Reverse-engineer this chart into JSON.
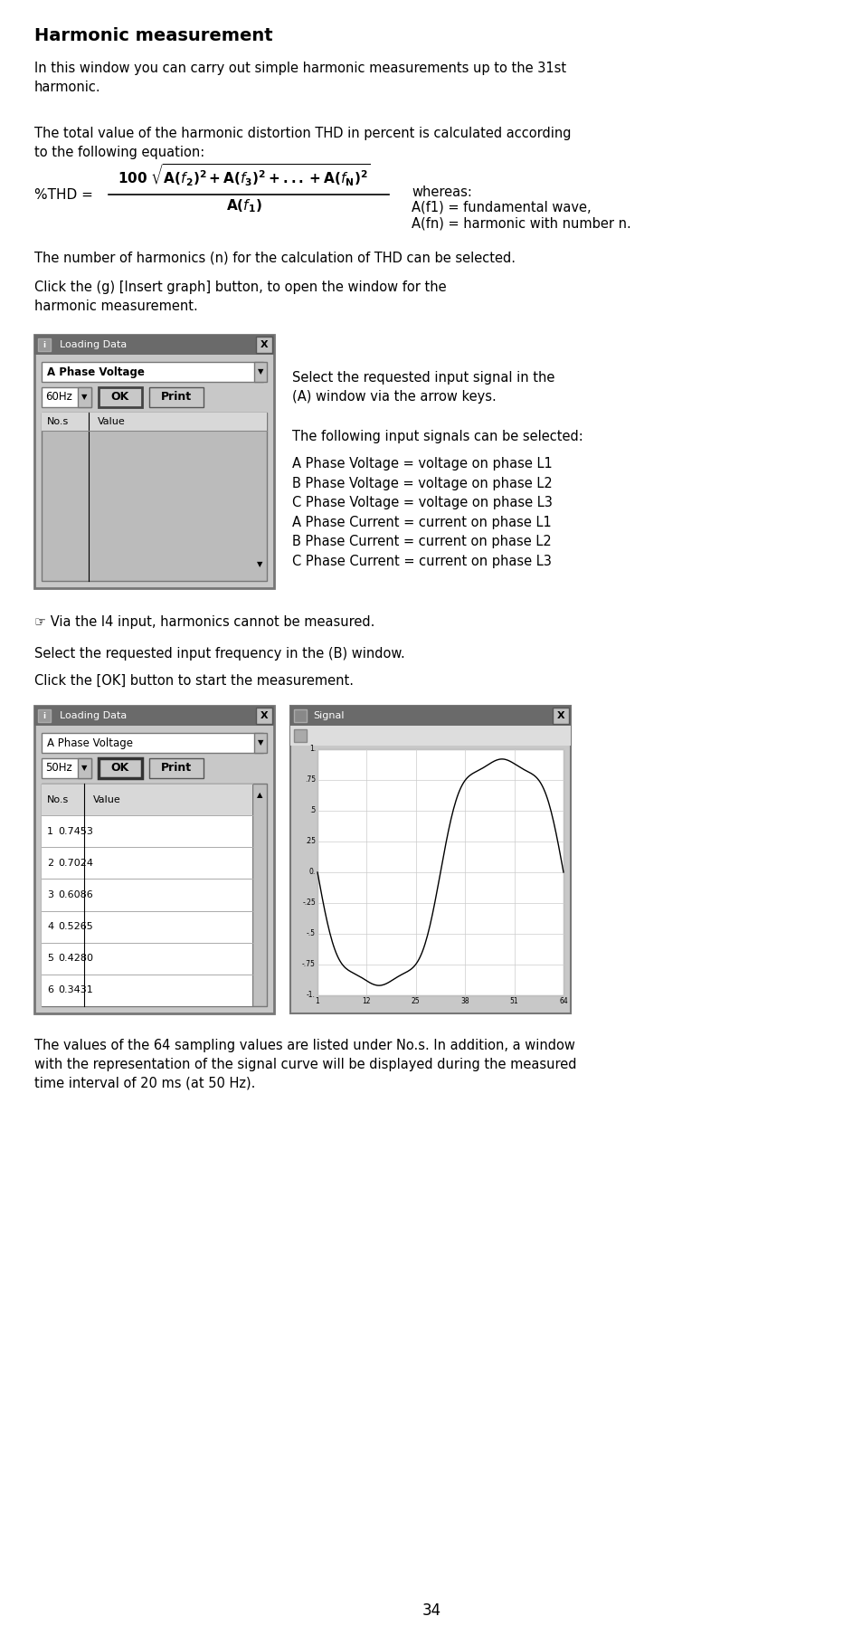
{
  "title": "Harmonic measurement",
  "bg_color": "#ffffff",
  "text_color": "#000000",
  "page_number": "34",
  "para1": "In this window you can carry out simple harmonic measurements up to the 31st\nharmonic.",
  "para2": "The total value of the harmonic distortion THD in percent is calculated according\nto the following equation:",
  "para3": "The number of harmonics (n) for the calculation of THD can be selected.",
  "para4": "Click the (g) [Insert graph] button, to open the window for the\nharmonic measurement.",
  "para5_right1": "Select the requested input signal in the\n(A) window via the arrow keys.",
  "para5_right2": "The following input signals can be selected:",
  "para5_right3": "A Phase Voltage = voltage on phase L1\nB Phase Voltage = voltage on phase L2\nC Phase Voltage = voltage on phase L3\nA Phase Current = current on phase L1\nB Phase Current = current on phase L2\nC Phase Current = current on phase L3",
  "para6": "☞ Via the I4 input, harmonics cannot be measured.",
  "para7": "Select the requested input frequency in the (B) window.",
  "para8": "Click the [OK] button to start the measurement.",
  "para9": "The values of the 64 sampling values are listed under No.s. In addition, a window\nwith the representation of the signal curve will be displayed during the measured\ntime interval of 20 ms (at 50 Hz).",
  "whereas_line1": "whereas:",
  "whereas_line2": "A(f1) = fundamental wave,",
  "whereas_line3": "A(fn) = harmonic with number n.",
  "table_rows": [
    [
      "1",
      "0.7453"
    ],
    [
      "2",
      "0.7024"
    ],
    [
      "3",
      "0.6086"
    ],
    [
      "4",
      "0.5265"
    ],
    [
      "5",
      "0.4280"
    ],
    [
      "6",
      "0.3431"
    ]
  ]
}
